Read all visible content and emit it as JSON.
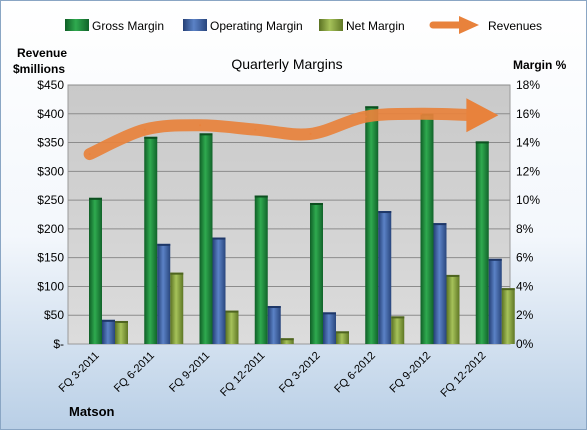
{
  "chart_data": {
    "type": "bar",
    "title": "Quarterly Margins",
    "left_axis_label_line1": "Revenue",
    "left_axis_label_line2": "$millions",
    "right_axis_label": "Margin %",
    "footer": "Matson",
    "categories": [
      "FQ 3-2011",
      "FQ 6-2011",
      "FQ 9-2011",
      "FQ 12-2011",
      "FQ 3-2012",
      "FQ 6-2012",
      "FQ 9-2012",
      "FQ 12-2012"
    ],
    "left_ticks": [
      "$-",
      "$50",
      "$100",
      "$150",
      "$200",
      "$250",
      "$300",
      "$350",
      "$400",
      "$450"
    ],
    "right_ticks": [
      "0%",
      "2%",
      "4%",
      "6%",
      "8%",
      "10%",
      "12%",
      "14%",
      "16%",
      "18%"
    ],
    "ylim_left": [
      0,
      450
    ],
    "ylim_right": [
      0,
      18
    ],
    "grid": true,
    "legend_position": "top",
    "series": [
      {
        "name": "Gross Margin",
        "axis": "left",
        "color": "#1f8a3c",
        "values": [
          254,
          360,
          366,
          258,
          245,
          413,
          400,
          352
        ]
      },
      {
        "name": "Operating Margin",
        "axis": "left",
        "color": "#3c64a8",
        "values": [
          42,
          174,
          185,
          66,
          55,
          231,
          210,
          148
        ]
      },
      {
        "name": "Net Margin",
        "axis": "left",
        "color": "#8aa83c",
        "values": [
          40,
          124,
          58,
          10,
          22,
          48,
          120,
          97
        ]
      },
      {
        "name": "Revenues",
        "axis": "right",
        "type": "line",
        "color": "#e8823c",
        "values": [
          13.2,
          14.9,
          15.2,
          14.9,
          14.6,
          15.8,
          16.0,
          15.9
        ]
      }
    ]
  }
}
